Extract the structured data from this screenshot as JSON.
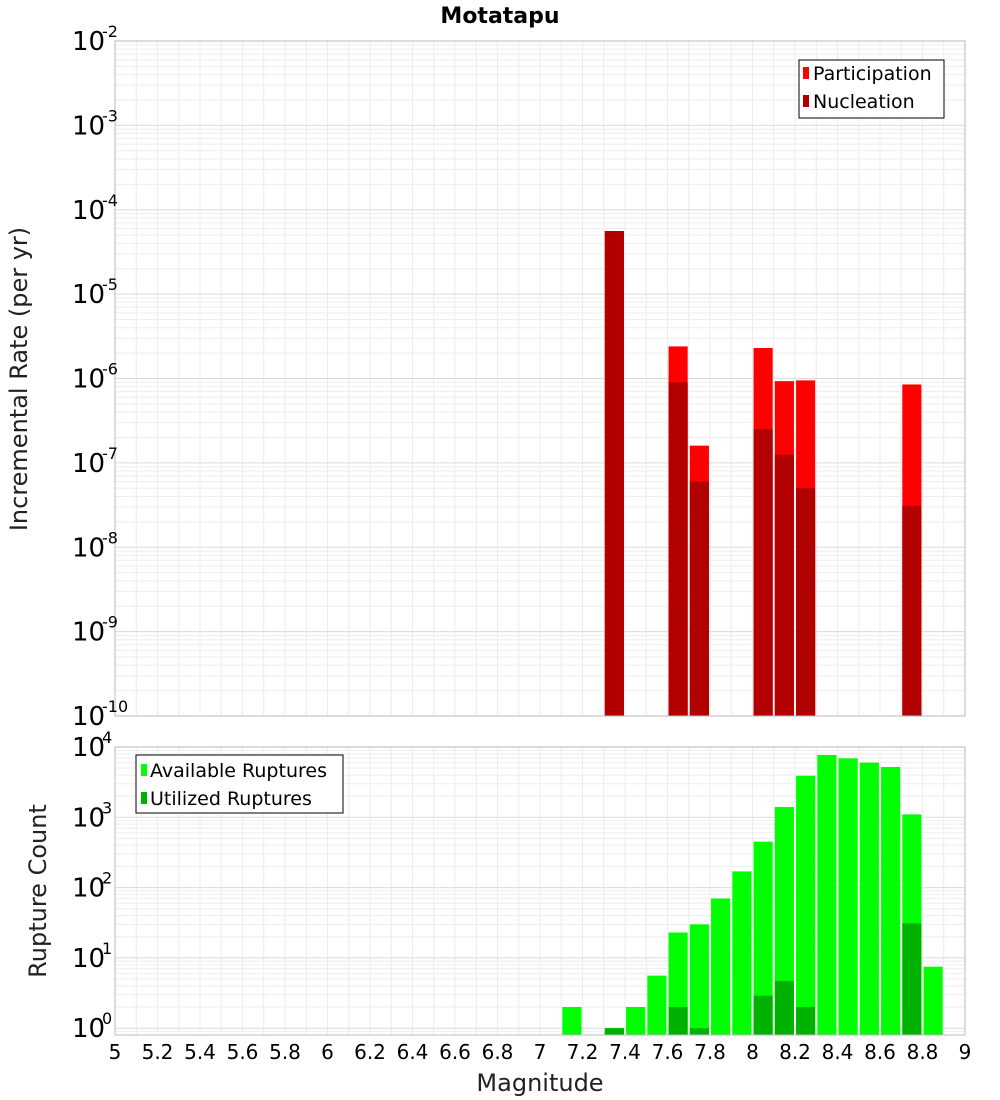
{
  "chart_data": [
    {
      "type": "bar",
      "title": "Motatapu",
      "ylabel": "Incremental Rate (per yr)",
      "xlabel": "",
      "y_scale": "log",
      "ylim": [
        1e-10,
        0.01
      ],
      "xlim": [
        5,
        9
      ],
      "grid": true,
      "legend_placement": "top-right",
      "bar_width": 0.09,
      "series": [
        {
          "name": "Participation",
          "color": "#ff0000",
          "x": [
            7.35,
            7.65,
            7.75,
            8.05,
            8.15,
            8.25,
            8.75
          ],
          "values": [
            5.6e-05,
            2.4e-06,
            1.6e-07,
            2.3e-06,
            9.3e-07,
            9.5e-07,
            8.5e-07
          ]
        },
        {
          "name": "Nucleation",
          "color": "#b20000",
          "x": [
            7.35,
            7.65,
            7.75,
            8.05,
            8.15,
            8.25,
            8.75
          ],
          "values": [
            5.6e-05,
            9e-07,
            6e-08,
            2.5e-07,
            1.25e-07,
            5e-08,
            3.1e-08
          ]
        }
      ]
    },
    {
      "type": "bar",
      "title": "",
      "ylabel": "Rupture Count",
      "xlabel": "Magnitude",
      "y_scale": "log",
      "ylim": [
        0.8,
        10000
      ],
      "xlim": [
        5,
        9
      ],
      "grid": true,
      "legend_placement": "top-left",
      "bar_width": 0.09,
      "x_ticks": [
        "5",
        "5.2",
        "5.4",
        "5.6",
        "5.8",
        "6",
        "6.2",
        "6.4",
        "6.6",
        "6.8",
        "7",
        "7.2",
        "7.4",
        "7.6",
        "7.8",
        "8",
        "8.2",
        "8.4",
        "8.6",
        "8.8",
        "9"
      ],
      "series": [
        {
          "name": "Available Ruptures",
          "color": "#00ff00",
          "x": [
            7.15,
            7.35,
            7.45,
            7.55,
            7.65,
            7.75,
            7.85,
            7.95,
            8.05,
            8.15,
            8.25,
            8.35,
            8.45,
            8.55,
            8.65,
            8.75,
            8.85
          ],
          "values": [
            2,
            1,
            2,
            5.6,
            23,
            30,
            70,
            170,
            450,
            1400,
            3900,
            7700,
            6900,
            6000,
            5200,
            1100,
            7.5
          ]
        },
        {
          "name": "Utilized Ruptures",
          "color": "#00b200",
          "x": [
            7.35,
            7.65,
            7.75,
            8.05,
            8.15,
            8.25,
            8.75
          ],
          "values": [
            1,
            2,
            1,
            2.9,
            4.7,
            2,
            31
          ]
        }
      ]
    }
  ]
}
